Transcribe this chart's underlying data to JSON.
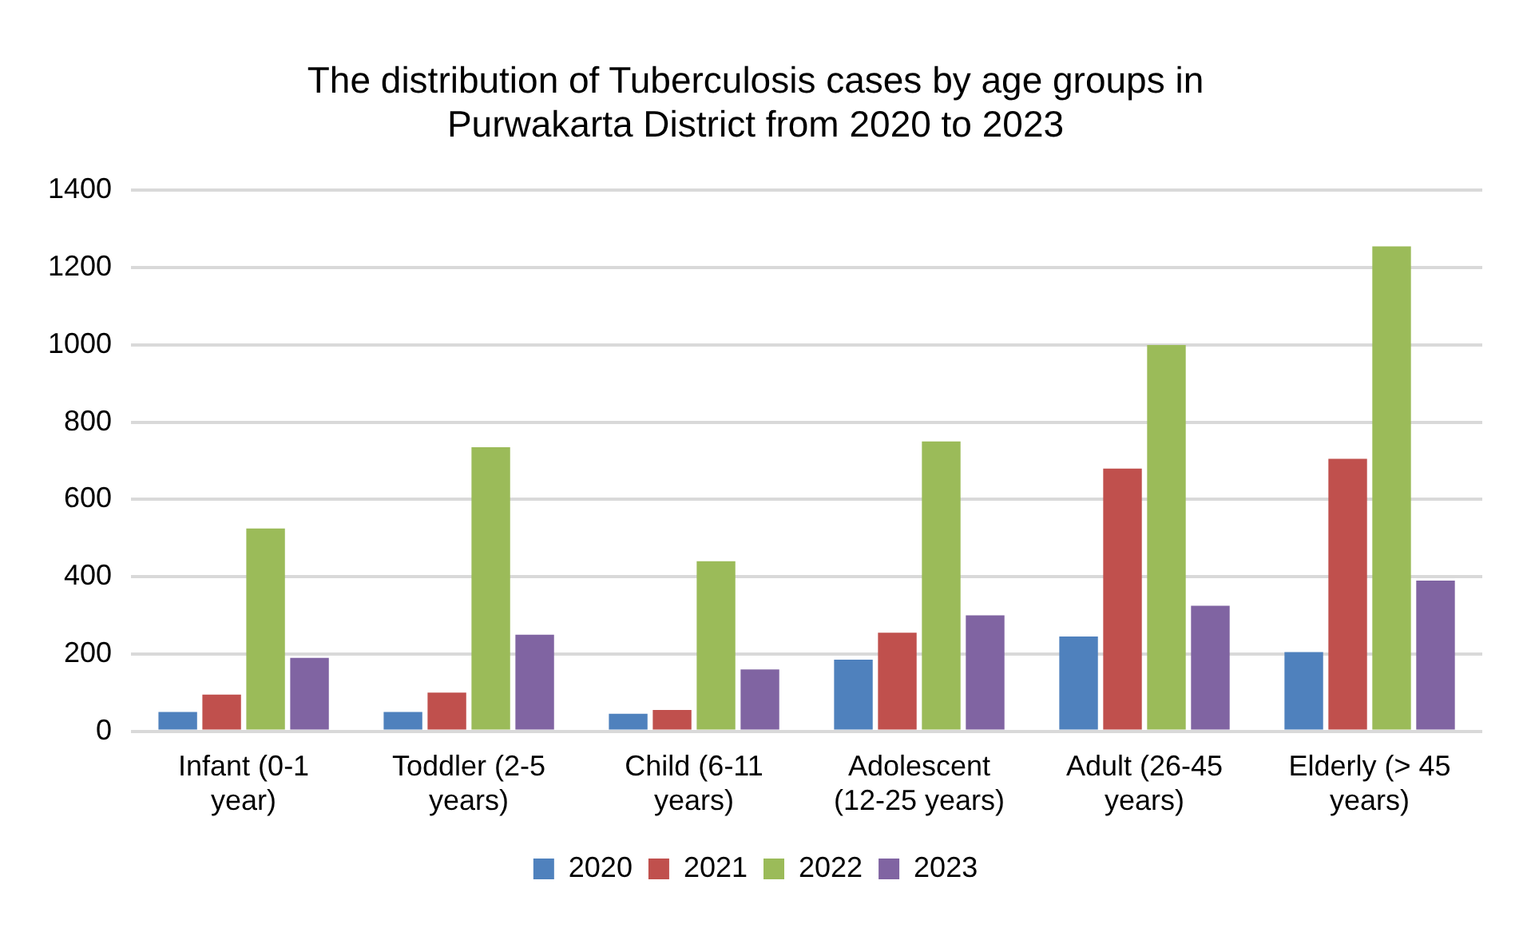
{
  "chart_data": {
    "type": "bar",
    "title": "The distribution of Tuberculosis cases by age groups in Purwakarta District from 2020 to 2023",
    "categories": [
      "Infant (0-1 year)",
      "Toddler (2-5 years)",
      "Child (6-11 years)",
      "Adolescent (12-25 years)",
      "Adult (26-45 years)",
      "Elderly (> 45 years)"
    ],
    "series": [
      {
        "name": "2020",
        "color": "#4f81bd",
        "values": [
          50,
          50,
          45,
          185,
          245,
          205
        ]
      },
      {
        "name": "2021",
        "color": "#c0504d",
        "values": [
          95,
          100,
          55,
          255,
          680,
          705
        ]
      },
      {
        "name": "2022",
        "color": "#9bbb59",
        "values": [
          525,
          735,
          440,
          750,
          1000,
          1255
        ]
      },
      {
        "name": "2023",
        "color": "#8064a2",
        "values": [
          190,
          250,
          160,
          300,
          325,
          390
        ]
      }
    ],
    "ylim": [
      0,
      1400
    ],
    "yticks": [
      0,
      200,
      400,
      600,
      800,
      1000,
      1200,
      1400
    ],
    "grid": "y",
    "legend": "bottom"
  }
}
